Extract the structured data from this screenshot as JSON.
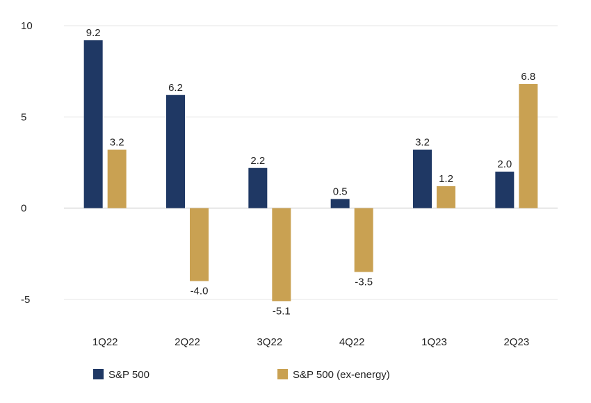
{
  "chart_data": {
    "type": "bar",
    "categories": [
      "1Q22",
      "2Q22",
      "3Q22",
      "4Q22",
      "1Q23",
      "2Q23"
    ],
    "series": [
      {
        "name": "S&P 500",
        "values": [
          9.2,
          6.2,
          2.2,
          0.5,
          3.2,
          2.0
        ],
        "color": "#1f3864"
      },
      {
        "name": "S&P 500 (ex-energy)",
        "values": [
          3.2,
          -4.0,
          -5.1,
          -3.5,
          1.2,
          6.8
        ],
        "color": "#c9a152"
      }
    ],
    "y_ticks": [
      "10",
      "5",
      "0",
      "-5"
    ],
    "ylim": [
      -6.2,
      10
    ],
    "grid": true,
    "legend_position": "bottom-left",
    "data_label_format": "one-decimal"
  }
}
